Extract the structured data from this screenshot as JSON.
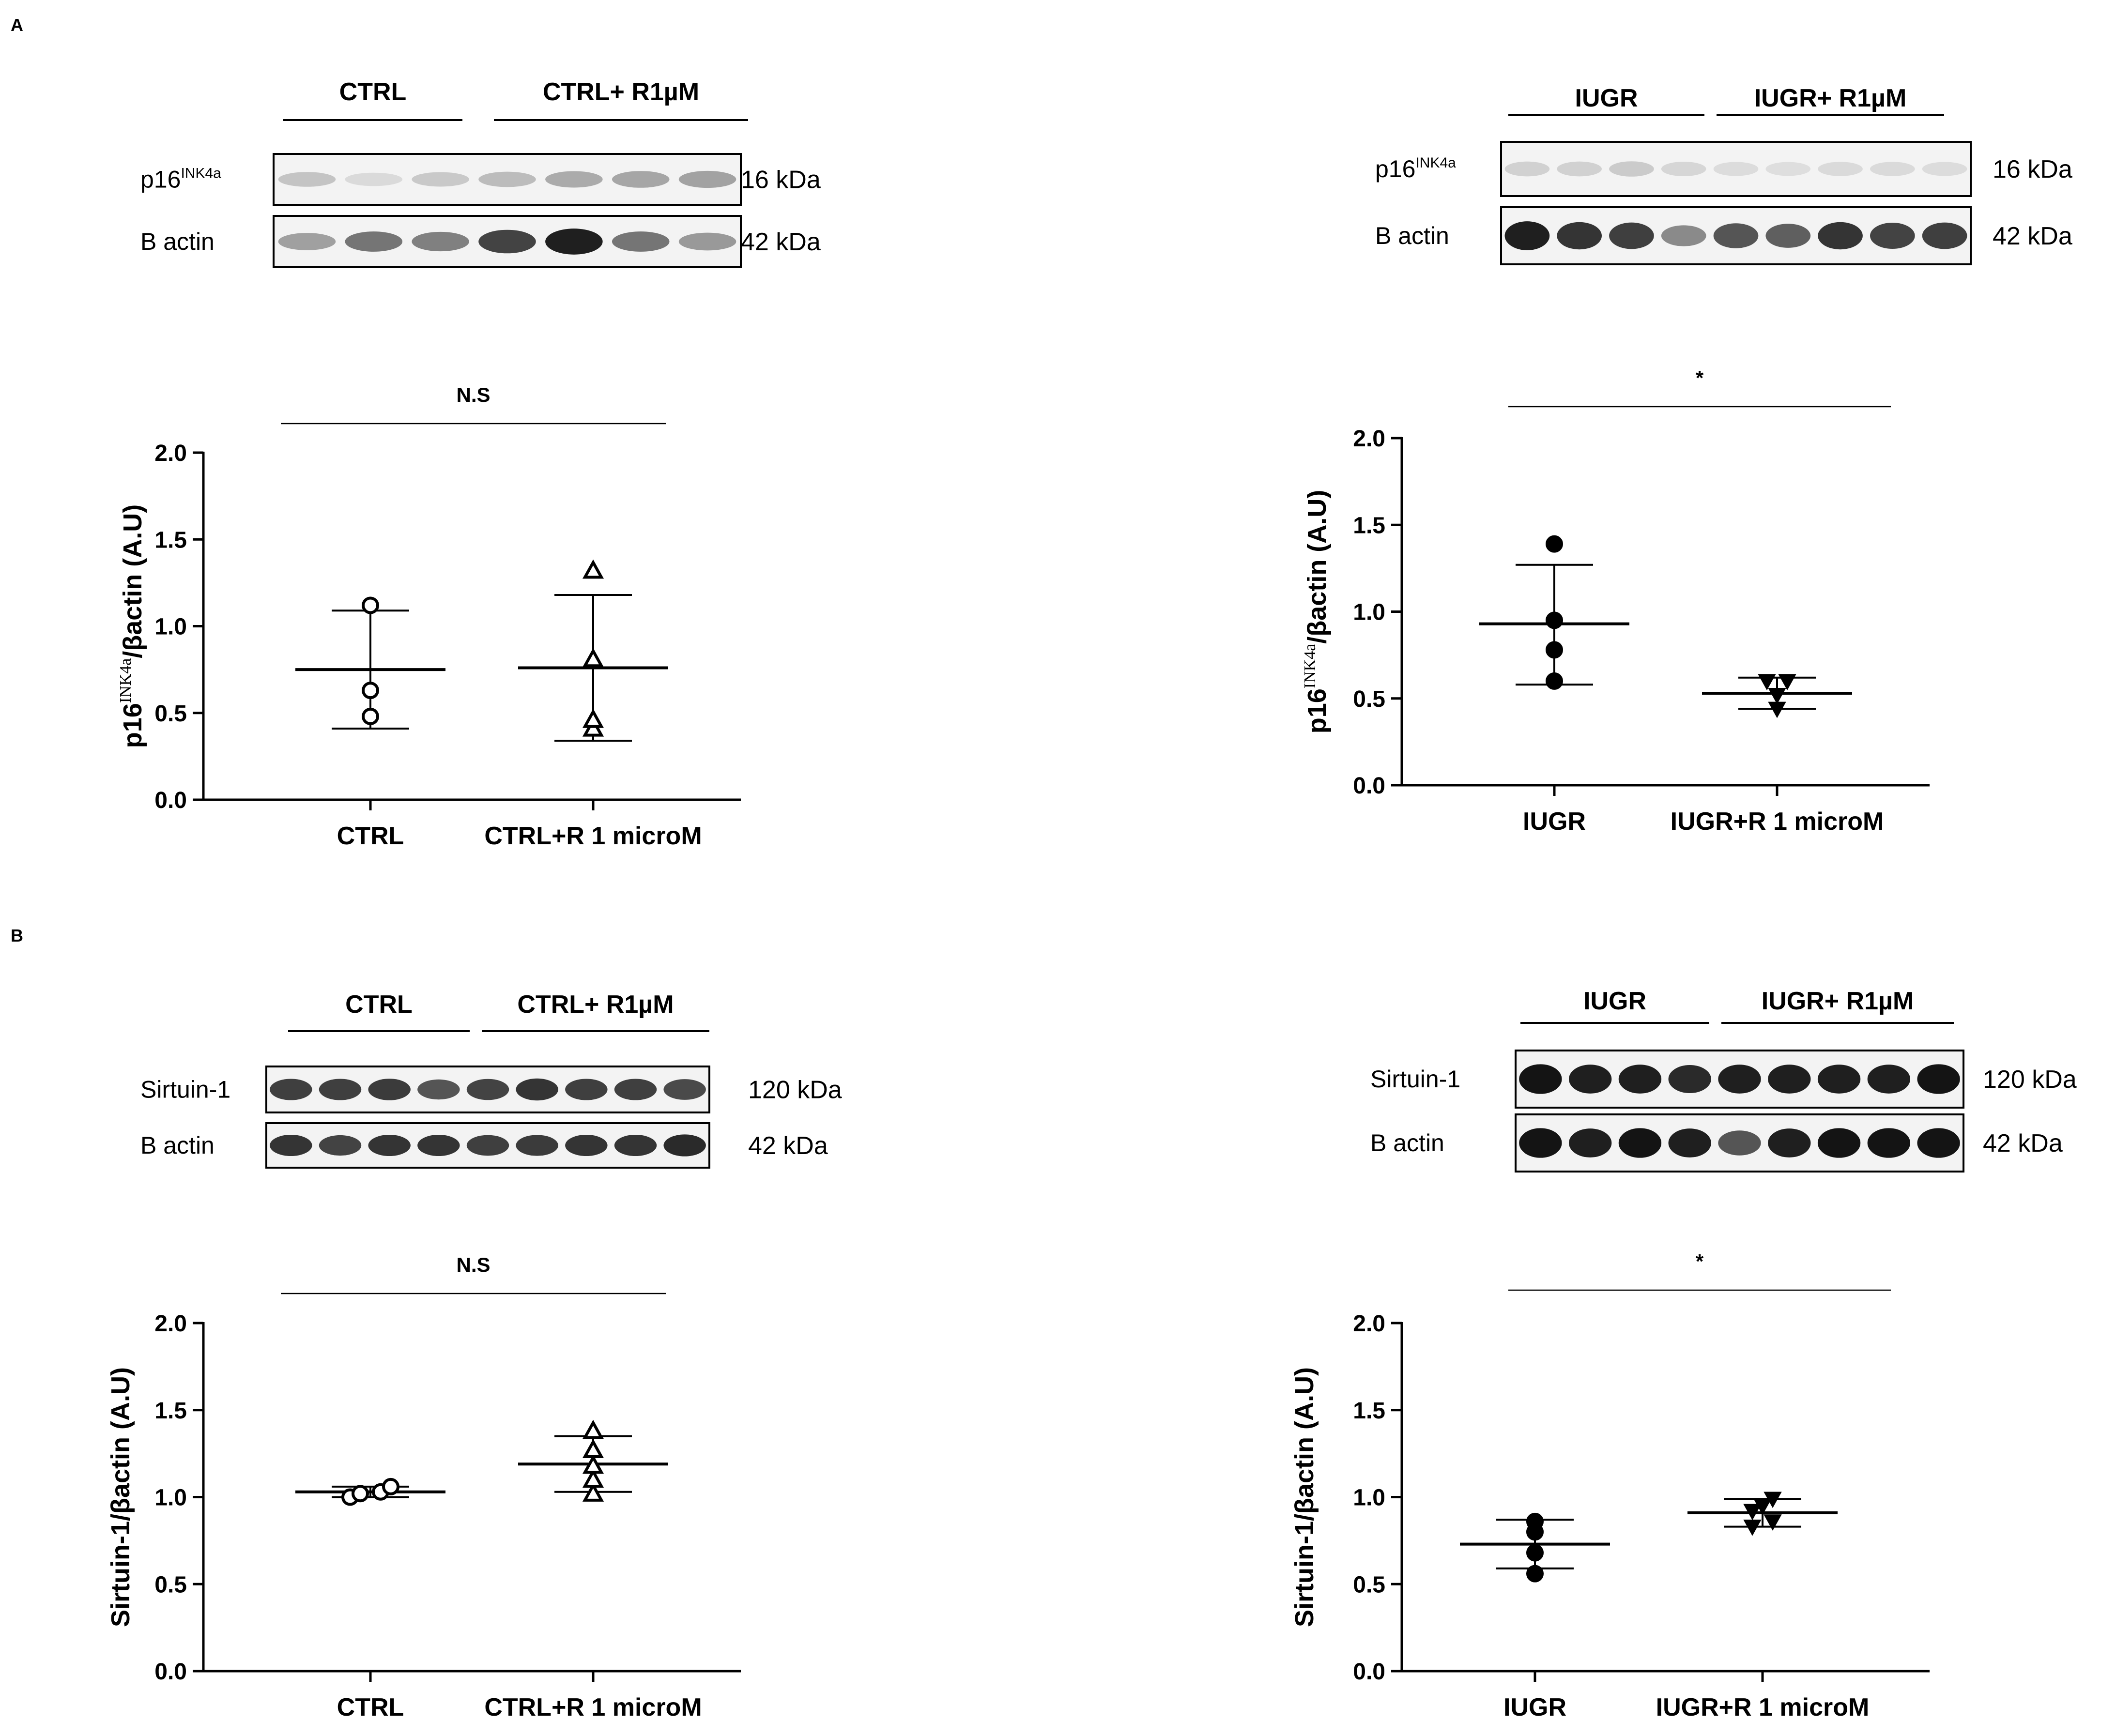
{
  "panels": [
    {
      "letter": "A",
      "blots": [
        {
          "groups": [
            "CTRL",
            "CTRL+ R1µM"
          ],
          "rows": [
            {
              "label": "p16",
              "label_sup": "INK4a",
              "kda": "16 kDa"
            },
            {
              "label": "B actin",
              "label_sup": "",
              "kda": "42 kDa"
            }
          ]
        },
        {
          "groups": [
            "IUGR",
            "IUGR+ R1µM"
          ],
          "rows": [
            {
              "label": "p16",
              "label_sup": "INK4a",
              "kda": "16 kDa"
            },
            {
              "label": "B actin",
              "label_sup": "",
              "kda": "42 kDa"
            }
          ]
        }
      ]
    },
    {
      "letter": "B",
      "blots": [
        {
          "groups": [
            "CTRL",
            "CTRL+ R1µM"
          ],
          "rows": [
            {
              "label": "Sirtuin-1",
              "label_sup": "",
              "kda": "120 kDa"
            },
            {
              "label": "B actin",
              "label_sup": "",
              "kda": "42 kDa"
            }
          ]
        },
        {
          "groups": [
            "IUGR",
            "IUGR+ R1µM"
          ],
          "rows": [
            {
              "label": "Sirtuin-1",
              "label_sup": "",
              "kda": "120 kDa"
            },
            {
              "label": "B actin",
              "label_sup": "",
              "kda": "42 kDa"
            }
          ]
        }
      ]
    }
  ],
  "chart_data": [
    {
      "type": "scatter",
      "panel": "A",
      "ylabel": {
        "pre": "p16",
        "sup": "INK4a",
        "post": "/βactin (A.U)"
      },
      "ylim": [
        0,
        2.0
      ],
      "yticks": [
        "0.0",
        "0.5",
        "1.0",
        "1.5",
        "2.0"
      ],
      "categories": [
        "CTRL",
        "CTRL+R 1 microM"
      ],
      "significance": "N.S",
      "series": [
        {
          "marker": "open-circle",
          "points": [
            0.48,
            0.63,
            1.12
          ],
          "mean": 0.75,
          "sd_low": 0.41,
          "sd_high": 1.09
        },
        {
          "marker": "open-triangle",
          "points": [
            0.41,
            0.46,
            0.81,
            1.32
          ],
          "mean": 0.76,
          "sd_low": 0.34,
          "sd_high": 1.18
        }
      ]
    },
    {
      "type": "scatter",
      "panel": "A",
      "ylabel": {
        "pre": "p16",
        "sup": "INK4a",
        "post": "/βactin (A.U)"
      },
      "ylim": [
        0,
        2.0
      ],
      "yticks": [
        "0.0",
        "0.5",
        "1.0",
        "1.5",
        "2.0"
      ],
      "categories": [
        "IUGR",
        "IUGR+R 1 microM"
      ],
      "significance": "*",
      "series": [
        {
          "marker": "filled-circle",
          "points": [
            0.6,
            0.78,
            0.95,
            1.39
          ],
          "mean": 0.93,
          "sd_low": 0.58,
          "sd_high": 1.27
        },
        {
          "marker": "filled-triangle-down",
          "points": [
            0.44,
            0.52,
            0.6,
            0.6
          ],
          "mean": 0.53,
          "sd_low": 0.44,
          "sd_high": 0.62
        }
      ]
    },
    {
      "type": "scatter",
      "panel": "B",
      "ylabel": {
        "pre": "Sirtuin-1/βactin (A.U)",
        "sup": "",
        "post": ""
      },
      "ylim": [
        0,
        2.0
      ],
      "yticks": [
        "0.0",
        "0.5",
        "1.0",
        "1.5",
        "2.0"
      ],
      "categories": [
        "CTRL",
        "CTRL+R 1 microM"
      ],
      "significance": "N.S",
      "series": [
        {
          "marker": "open-circle",
          "points": [
            1.0,
            1.02,
            1.03,
            1.06
          ],
          "mean": 1.03,
          "sd_low": 1.0,
          "sd_high": 1.06
        },
        {
          "marker": "open-triangle",
          "points": [
            1.02,
            1.1,
            1.18,
            1.27,
            1.38
          ],
          "mean": 1.19,
          "sd_low": 1.03,
          "sd_high": 1.35
        }
      ]
    },
    {
      "type": "scatter",
      "panel": "B",
      "ylabel": {
        "pre": "Sirtuin-1/βactin (A.U)",
        "sup": "",
        "post": ""
      },
      "ylim": [
        0,
        2.0
      ],
      "yticks": [
        "0.0",
        "0.5",
        "1.0",
        "1.5",
        "2.0"
      ],
      "categories": [
        "IUGR",
        "IUGR+R 1 microM"
      ],
      "significance": "*",
      "series": [
        {
          "marker": "filled-circle",
          "points": [
            0.56,
            0.68,
            0.8,
            0.86
          ],
          "mean": 0.73,
          "sd_low": 0.59,
          "sd_high": 0.87
        },
        {
          "marker": "filled-triangle-down",
          "points": [
            0.83,
            0.86,
            0.92,
            0.95,
            0.99
          ],
          "mean": 0.91,
          "sd_low": 0.83,
          "sd_high": 0.99
        }
      ]
    }
  ]
}
